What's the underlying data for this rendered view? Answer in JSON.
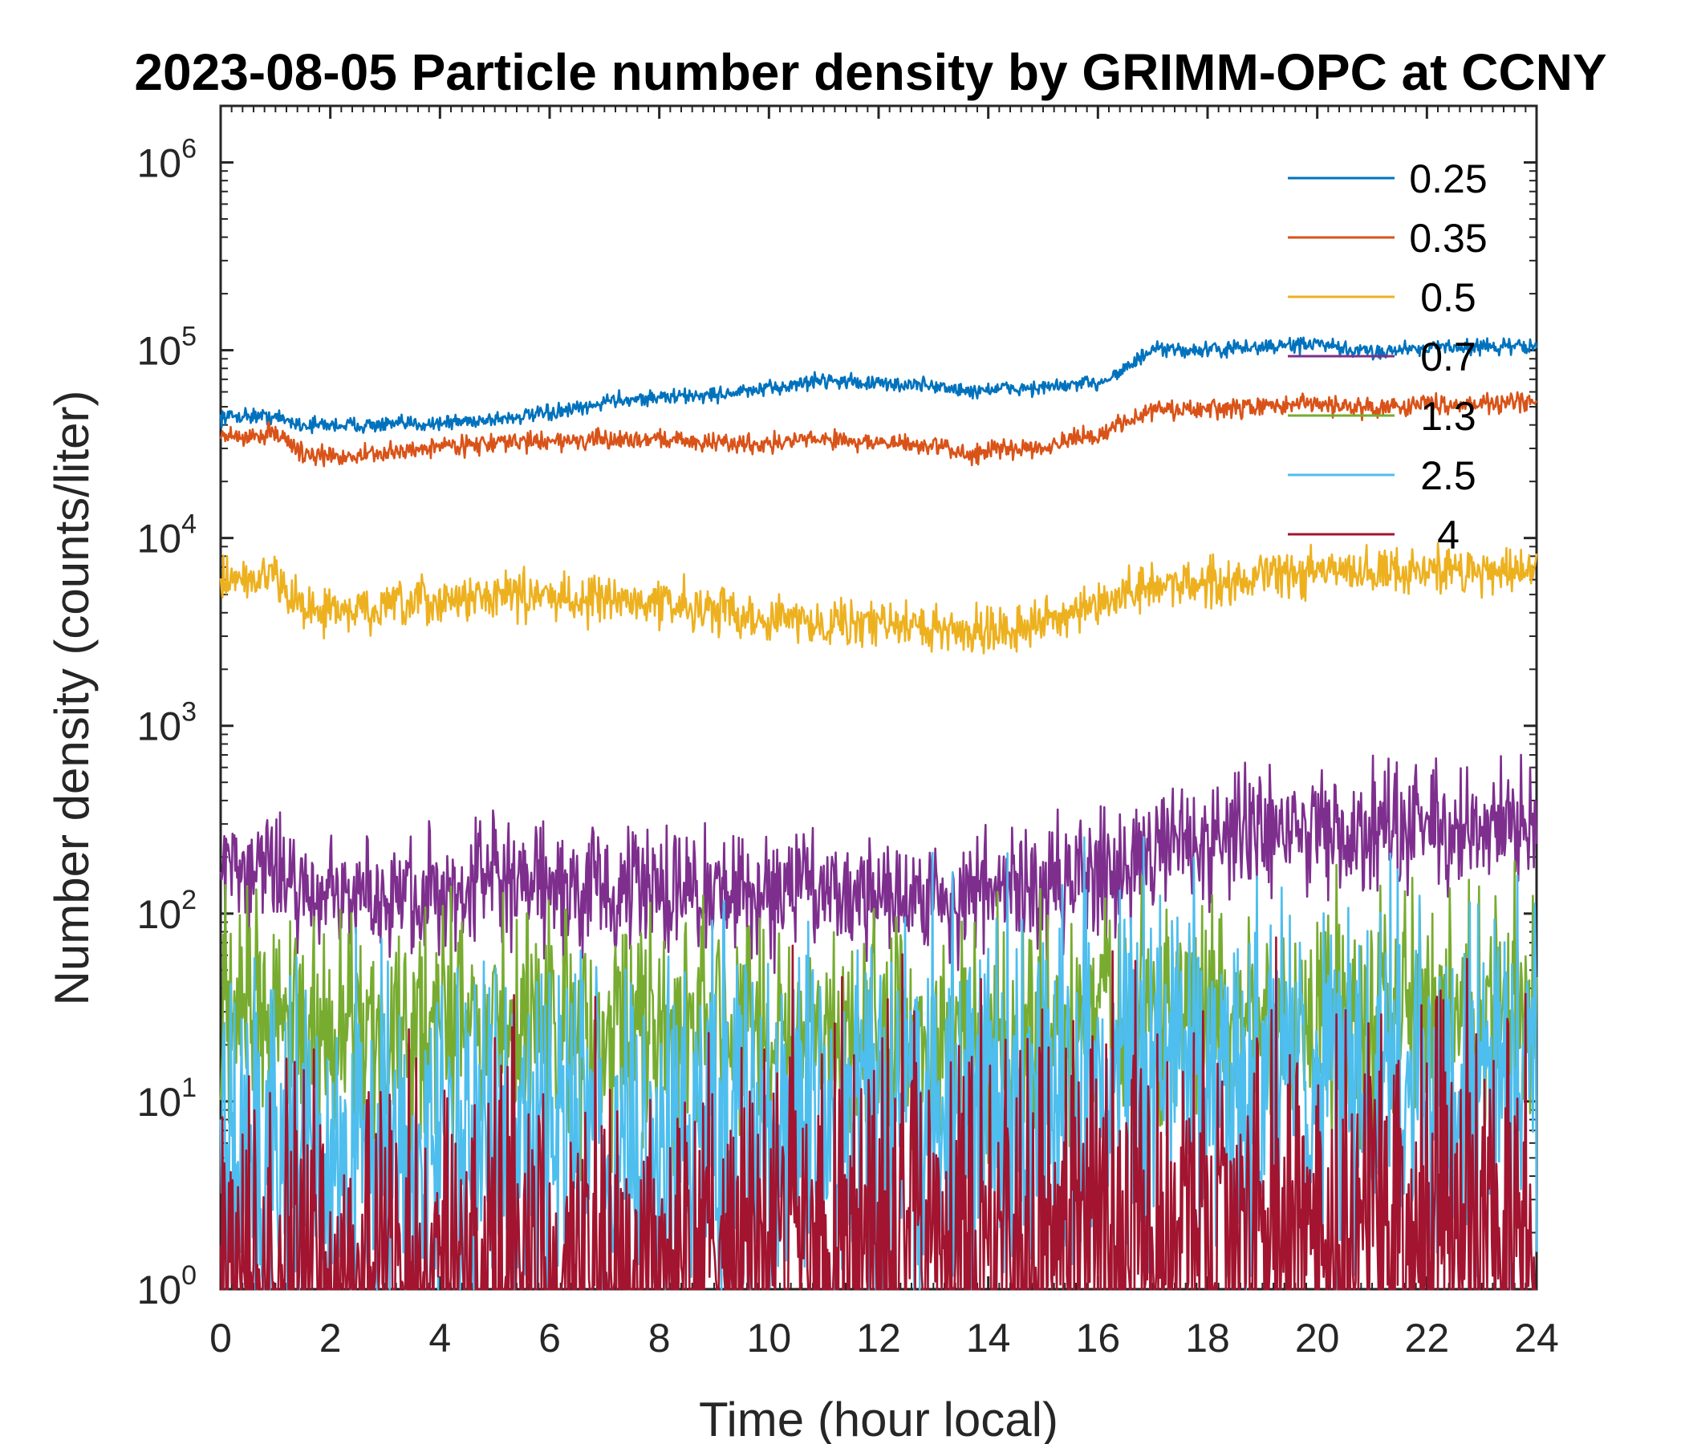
{
  "chart_data": {
    "type": "line",
    "title": "2023-08-05 Particle number density by GRIMM-OPC at CCNY",
    "xlabel": "Time (hour local)",
    "ylabel": "Number density (counts/liter)",
    "xlim": [
      0,
      24
    ],
    "ylim": [
      1,
      2000000
    ],
    "yscale": "log",
    "grid": false,
    "legend_position": "top-right",
    "x_ticks": [
      "0",
      "2",
      "4",
      "6",
      "8",
      "10",
      "12",
      "14",
      "16",
      "18",
      "20",
      "22",
      "24"
    ],
    "y_ticks": [
      {
        "base": "10",
        "exp": "0",
        "value": 1
      },
      {
        "base": "10",
        "exp": "1",
        "value": 10
      },
      {
        "base": "10",
        "exp": "2",
        "value": 100
      },
      {
        "base": "10",
        "exp": "3",
        "value": 1000
      },
      {
        "base": "10",
        "exp": "4",
        "value": 10000
      },
      {
        "base": "10",
        "exp": "5",
        "value": 100000
      },
      {
        "base": "10",
        "exp": "6",
        "value": 1000000
      }
    ],
    "series": [
      {
        "name": "0.25",
        "legend_label": "0.25",
        "color": "#0072BD",
        "noise": 0.02,
        "x": [
          0,
          0.5,
          1,
          1.5,
          2,
          3,
          4,
          5,
          6,
          6.8,
          7,
          8,
          9,
          10,
          11,
          12,
          13,
          13.6,
          14,
          15,
          16,
          16.5,
          17,
          18,
          19,
          20,
          20.5,
          21,
          22,
          23,
          24
        ],
        "y": [
          44000,
          45000,
          44000,
          40000,
          40000,
          40000,
          41000,
          43000,
          46000,
          50000,
          54000,
          56000,
          58000,
          62000,
          70000,
          66000,
          65000,
          60000,
          62000,
          63000,
          67000,
          80000,
          100000,
          100000,
          104000,
          108000,
          100000,
          98000,
          104000,
          104000,
          105000
        ]
      },
      {
        "name": "0.35",
        "legend_label": "0.35",
        "color": "#D95319",
        "noise": 0.025,
        "x": [
          0,
          0.5,
          1,
          1.5,
          2,
          3,
          4,
          5,
          6,
          7,
          8,
          9,
          10,
          11,
          12,
          13,
          13.6,
          14,
          15,
          16,
          16.5,
          17,
          18,
          19,
          20,
          21,
          22,
          23,
          24
        ],
        "y": [
          35000,
          34000,
          37000,
          28000,
          27000,
          28000,
          31000,
          32000,
          33000,
          33000,
          34000,
          32000,
          32000,
          34000,
          32000,
          31000,
          28000,
          29000,
          31000,
          35000,
          42000,
          48000,
          48000,
          50000,
          52000,
          49000,
          52000,
          52000,
          53000
        ]
      },
      {
        "name": "0.5",
        "legend_label": "0.5",
        "color": "#EDB120",
        "noise": 0.06,
        "x": [
          0,
          0.5,
          1,
          1.5,
          2,
          3,
          4,
          5,
          6,
          7,
          8,
          9,
          10,
          11,
          12,
          13,
          14,
          15,
          16,
          16.5,
          17,
          18,
          19,
          20,
          21,
          22,
          23,
          24
        ],
        "y": [
          5800,
          6000,
          6200,
          4300,
          4000,
          4200,
          4600,
          5000,
          4900,
          4700,
          4500,
          4200,
          3700,
          3600,
          3500,
          3300,
          3200,
          3600,
          4200,
          5000,
          5600,
          5800,
          6200,
          6600,
          6600,
          6800,
          6700,
          6700
        ]
      },
      {
        "name": "0.7",
        "legend_label": "0.7",
        "color": "#7E2F8E",
        "noise": 0.16,
        "x": [
          0,
          0.5,
          1,
          1.3,
          2,
          3,
          4,
          5,
          6,
          7,
          8,
          9,
          10,
          11,
          12,
          13,
          14,
          15,
          16,
          16.5,
          17,
          18,
          19,
          20,
          21,
          22,
          23,
          24
        ],
        "y": [
          200,
          190,
          185,
          140,
          120,
          120,
          130,
          140,
          135,
          130,
          130,
          130,
          135,
          140,
          130,
          120,
          125,
          140,
          160,
          200,
          240,
          250,
          270,
          280,
          280,
          290,
          280,
          290
        ]
      },
      {
        "name": "1.3",
        "legend_label": "1.3",
        "color": "#77AC30",
        "noise": 0.3,
        "x": [
          0,
          2,
          4,
          6,
          8,
          10,
          12,
          14,
          16,
          18,
          20,
          22,
          24
        ],
        "y": [
          28,
          24,
          25,
          25,
          24,
          23,
          22,
          20,
          24,
          30,
          30,
          32,
          30
        ]
      },
      {
        "name": "2.5",
        "legend_label": "2.5",
        "color": "#4DBEEE",
        "noise": 0.5,
        "x": [
          0,
          2,
          4,
          6,
          8,
          10,
          12,
          14,
          16,
          18,
          20,
          22,
          24
        ],
        "y": [
          5,
          5,
          5,
          6,
          7,
          8,
          10,
          10,
          11,
          12,
          13,
          13,
          13
        ]
      },
      {
        "name": "4",
        "legend_label": "4",
        "color": "#A2142F",
        "noise": 0.6,
        "x": [
          0,
          2,
          4,
          6,
          8,
          10,
          12,
          14,
          16,
          18,
          20,
          22,
          24
        ],
        "y": [
          1,
          1,
          1,
          1,
          1.2,
          1.8,
          2.2,
          1.6,
          2,
          2,
          1.8,
          2,
          2
        ]
      }
    ]
  }
}
